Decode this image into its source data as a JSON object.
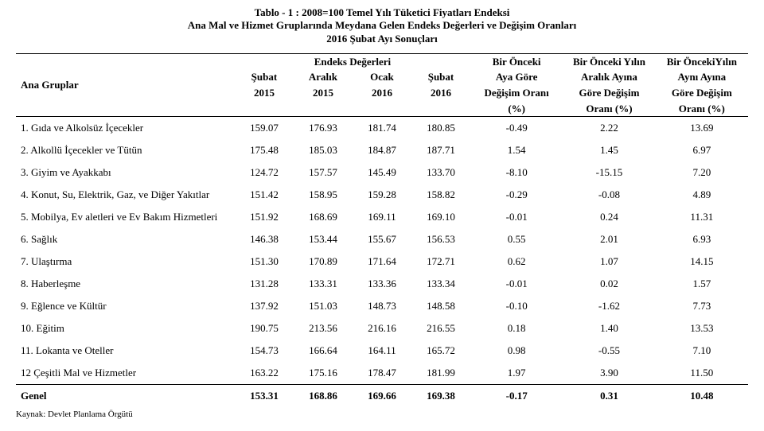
{
  "title": {
    "line1": "Tablo - 1 :     2008=100 Temel Yılı Tüketici Fiyatları Endeksi",
    "line2": "Ana Mal ve Hizmet Gruplarında Meydana Gelen Endeks Değerleri ve Değişim Oranları",
    "line3": "2016 Şubat Ayı Sonuçları"
  },
  "header": {
    "group": "Ana Gruplar",
    "indexValues": "Endeks Değerleri",
    "col1l1": "Şubat",
    "col1l2": "2015",
    "col2l1": "Aralık",
    "col2l2": "2015",
    "col3l1": "Ocak",
    "col3l2": "2016",
    "col4l1": "Şubat",
    "col4l2": "2016",
    "pct1l1": "Bir Önceki",
    "pct1l2": "Aya Göre",
    "pct1l3": "Değişim Oranı",
    "pct1l4": "(%)",
    "pct2l1": "Bir Önceki Yılın",
    "pct2l2": "Aralık Ayına",
    "pct2l3": "Göre Değişim",
    "pct2l4": "Oranı (%)",
    "pct3l1": "Bir ÖncekiYılın",
    "pct3l2": "Aynı Ayına",
    "pct3l3": "Göre Değişim",
    "pct3l4": "Oranı (%)"
  },
  "rows": [
    {
      "label": "1. Gıda ve Alkolsüz İçecekler",
      "v": [
        "159.07",
        "176.93",
        "181.74",
        "180.85",
        "-0.49",
        "2.22",
        "13.69"
      ]
    },
    {
      "label": "2. Alkollü İçecekler ve Tütün",
      "v": [
        "175.48",
        "185.03",
        "184.87",
        "187.71",
        "1.54",
        "1.45",
        "6.97"
      ]
    },
    {
      "label": "3. Giyim ve Ayakkabı",
      "v": [
        "124.72",
        "157.57",
        "145.49",
        "133.70",
        "-8.10",
        "-15.15",
        "7.20"
      ]
    },
    {
      "label": "4. Konut, Su, Elektrik, Gaz, ve Diğer Yakıtlar",
      "v": [
        "151.42",
        "158.95",
        "159.28",
        "158.82",
        "-0.29",
        "-0.08",
        "4.89"
      ]
    },
    {
      "label": "5. Mobilya, Ev aletleri ve Ev Bakım Hizmetleri",
      "v": [
        "151.92",
        "168.69",
        "169.11",
        "169.10",
        "-0.01",
        "0.24",
        "11.31"
      ]
    },
    {
      "label": "6. Sağlık",
      "v": [
        "146.38",
        "153.44",
        "155.67",
        "156.53",
        "0.55",
        "2.01",
        "6.93"
      ]
    },
    {
      "label": "7. Ulaştırma",
      "v": [
        "151.30",
        "170.89",
        "171.64",
        "172.71",
        "0.62",
        "1.07",
        "14.15"
      ]
    },
    {
      "label": "8. Haberleşme",
      "v": [
        "131.28",
        "133.31",
        "133.36",
        "133.34",
        "-0.01",
        "0.02",
        "1.57"
      ]
    },
    {
      "label": "9. Eğlence ve Kültür",
      "v": [
        "137.92",
        "151.03",
        "148.73",
        "148.58",
        "-0.10",
        "-1.62",
        "7.73"
      ]
    },
    {
      "label": "10. Eğitim",
      "v": [
        "190.75",
        "213.56",
        "216.16",
        "216.55",
        "0.18",
        "1.40",
        "13.53"
      ]
    },
    {
      "label": "11. Lokanta ve Oteller",
      "v": [
        "154.73",
        "166.64",
        "164.11",
        "165.72",
        "0.98",
        "-0.55",
        "7.10"
      ]
    },
    {
      "label": "12 Çeşitli Mal ve Hizmetler",
      "v": [
        "163.22",
        "175.16",
        "178.47",
        "181.99",
        "1.97",
        "3.90",
        "11.50"
      ]
    }
  ],
  "total": {
    "label": "Genel",
    "v": [
      "153.31",
      "168.86",
      "169.66",
      "169.38",
      "-0.17",
      "0.31",
      "10.48"
    ]
  },
  "source": "Kaynak: Devlet Planlama Örgütü",
  "colors": {
    "text": "#000000",
    "bg": "#ffffff"
  }
}
